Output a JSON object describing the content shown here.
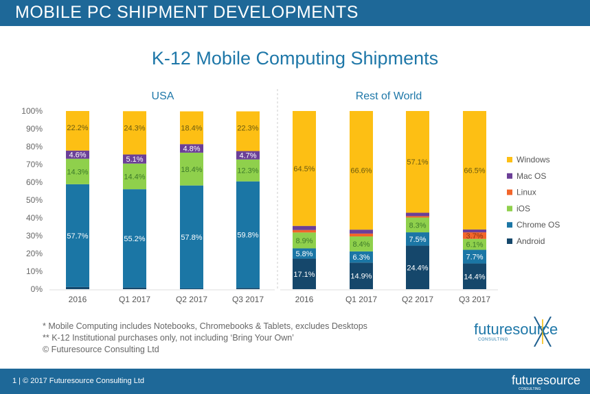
{
  "header": {
    "title": "MOBILE PC SHIPMENT DEVELOPMENTS"
  },
  "chart_data": {
    "type": "bar",
    "stacked": true,
    "title": "K-12 Mobile Computing Shipments",
    "ylim": [
      0,
      100
    ],
    "yticks": [
      "0%",
      "10%",
      "20%",
      "30%",
      "40%",
      "50%",
      "60%",
      "70%",
      "80%",
      "90%",
      "100%"
    ],
    "legend_position": "right",
    "legend": [
      "Windows",
      "Mac OS",
      "Linux",
      "iOS",
      "Chrome OS",
      "Android"
    ],
    "colors": {
      "Android": "#15476b",
      "Chrome OS": "#1b76a5",
      "iOS": "#8fd04c",
      "Linux": "#f2652a",
      "Mac OS": "#6b3f97",
      "Windows": "#fdbf14"
    },
    "panels": [
      {
        "name": "USA",
        "categories": [
          "2016",
          "Q1 2017",
          "Q2 2017",
          "Q3 2017"
        ],
        "series": [
          {
            "name": "Android",
            "values": [
              1.2,
              0.9,
              0.4,
              0.7
            ],
            "labels": [
              null,
              null,
              null,
              null
            ]
          },
          {
            "name": "Chrome OS",
            "values": [
              57.7,
              55.2,
              57.8,
              59.8
            ],
            "labels": [
              "57.7%",
              "55.2%",
              "57.8%",
              "59.8%"
            ]
          },
          {
            "name": "iOS",
            "values": [
              14.3,
              14.4,
              18.4,
              12.3
            ],
            "labels": [
              "14.3%",
              "14.4%",
              "18.4%",
              "12.3%"
            ]
          },
          {
            "name": "Linux",
            "values": [
              0,
              0,
              0,
              0
            ],
            "labels": [
              null,
              null,
              null,
              null
            ]
          },
          {
            "name": "Mac OS",
            "values": [
              4.6,
              5.1,
              4.8,
              4.7
            ],
            "labels": [
              "4.6%",
              "5.1%",
              "4.8%",
              "4.7%"
            ]
          },
          {
            "name": "Windows",
            "values": [
              22.2,
              24.3,
              18.4,
              22.3
            ],
            "labels": [
              "22.2%",
              "24.3%",
              "18.4%",
              "22.3%"
            ]
          }
        ]
      },
      {
        "name": "Rest of World",
        "categories": [
          "2016",
          "Q1 2017",
          "Q2 2017",
          "Q3 2017"
        ],
        "series": [
          {
            "name": "Android",
            "values": [
              17.1,
              14.9,
              24.4,
              14.4
            ],
            "labels": [
              "17.1%",
              "14.9%",
              "24.4%",
              "14.4%"
            ]
          },
          {
            "name": "Chrome OS",
            "values": [
              5.8,
              6.3,
              7.5,
              7.7
            ],
            "labels": [
              "5.8%",
              "6.3%",
              "7.5%",
              "7.7%"
            ]
          },
          {
            "name": "iOS",
            "values": [
              8.9,
              8.4,
              8.3,
              6.1
            ],
            "labels": [
              "8.9%",
              "8.4%",
              "8.3%",
              "6.1%"
            ]
          },
          {
            "name": "Linux",
            "values": [
              1.4,
              1.6,
              0.8,
              3.7
            ],
            "labels": [
              null,
              null,
              null,
              "3.7%"
            ]
          },
          {
            "name": "Mac OS",
            "values": [
              2.3,
              2.2,
              1.9,
              1.6
            ],
            "labels": [
              null,
              null,
              null,
              null
            ]
          },
          {
            "name": "Windows",
            "values": [
              64.5,
              66.6,
              57.1,
              66.5
            ],
            "labels": [
              "64.5%",
              "66.6%",
              "57.1%",
              "66.5%"
            ]
          }
        ]
      }
    ]
  },
  "notes": [
    "* Mobile Computing includes Notebooks, Chromebooks & Tablets, excludes Desktops",
    "** K-12 Institutional purchases only, not including ‘Bring Your Own’",
    "© Futuresource Consulting Ltd"
  ],
  "logo": {
    "text": "futuresource",
    "sub": "CONSULTING"
  },
  "footer": {
    "copyright": "1  |  © 2017 Futuresource Consulting Ltd"
  }
}
